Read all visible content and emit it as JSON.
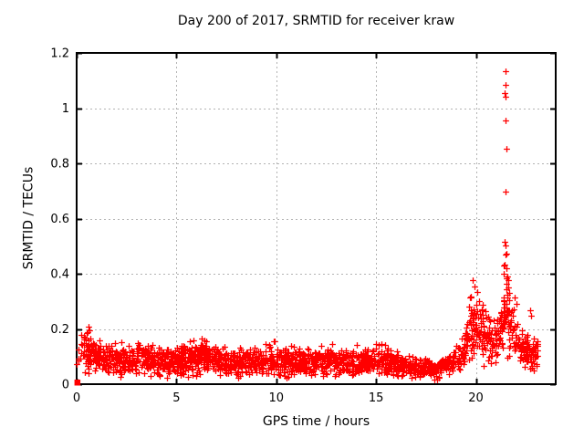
{
  "chart_data": {
    "type": "scatter",
    "title": "Day 200 of 2017, SRMTID for receiver kraw",
    "xlabel": "GPS time / hours",
    "ylabel": "SRMTID / TECUs",
    "xlim": [
      0,
      24
    ],
    "ylim": [
      0,
      1.2
    ],
    "xticks": [
      0,
      5,
      10,
      15,
      20
    ],
    "yticks": [
      0,
      0.2,
      0.4,
      0.6,
      0.8,
      1,
      1.2
    ],
    "xtick_labels": [
      "0",
      "5",
      "10",
      "15",
      "20"
    ],
    "ytick_labels": [
      "0",
      "0.2",
      "0.4",
      "0.6",
      "0.8",
      "1",
      "1.2"
    ],
    "grid": true,
    "legend": "none",
    "marker": "plus",
    "colors": {
      "points": "#ff0000",
      "grid": "#b3b3b3",
      "axis": "#000000",
      "background": "#ffffff",
      "text": "#000000"
    },
    "band_profile": [
      [
        0.0,
        0.105,
        0.05
      ],
      [
        0.45,
        0.125,
        0.075
      ],
      [
        0.8,
        0.1,
        0.055
      ],
      [
        1.5,
        0.09,
        0.05
      ],
      [
        2.5,
        0.085,
        0.05
      ],
      [
        3.5,
        0.09,
        0.055
      ],
      [
        4.5,
        0.08,
        0.045
      ],
      [
        5.5,
        0.085,
        0.05
      ],
      [
        6.3,
        0.1,
        0.06
      ],
      [
        7.0,
        0.085,
        0.05
      ],
      [
        8.0,
        0.08,
        0.045
      ],
      [
        9.0,
        0.085,
        0.05
      ],
      [
        10.2,
        0.09,
        0.055
      ],
      [
        11.0,
        0.08,
        0.045
      ],
      [
        12.0,
        0.085,
        0.05
      ],
      [
        13.0,
        0.085,
        0.05
      ],
      [
        14.0,
        0.08,
        0.045
      ],
      [
        15.2,
        0.09,
        0.055
      ],
      [
        16.0,
        0.075,
        0.04
      ],
      [
        17.0,
        0.06,
        0.033
      ],
      [
        18.0,
        0.055,
        0.03
      ],
      [
        18.7,
        0.07,
        0.035
      ],
      [
        19.3,
        0.11,
        0.05
      ],
      [
        19.55,
        0.17,
        0.09
      ],
      [
        19.8,
        0.21,
        0.1
      ],
      [
        20.1,
        0.215,
        0.1
      ],
      [
        20.5,
        0.17,
        0.08
      ],
      [
        21.0,
        0.16,
        0.07
      ],
      [
        21.3,
        0.2,
        0.1
      ],
      [
        21.45,
        0.3,
        0.17
      ],
      [
        21.6,
        0.28,
        0.16
      ],
      [
        21.75,
        0.19,
        0.09
      ],
      [
        22.0,
        0.17,
        0.08
      ],
      [
        22.3,
        0.13,
        0.06
      ],
      [
        22.6,
        0.105,
        0.05
      ],
      [
        23.1,
        0.115,
        0.055
      ]
    ],
    "density_segments": [
      [
        0.0,
        0.3,
        30
      ],
      [
        0.3,
        1.0,
        95
      ],
      [
        1.0,
        17.0,
        95
      ],
      [
        17.0,
        19.0,
        80
      ],
      [
        19.0,
        21.2,
        95
      ],
      [
        21.2,
        21.7,
        120
      ],
      [
        21.7,
        22.4,
        75
      ],
      [
        22.4,
        23.1,
        95
      ]
    ],
    "outlier_points": [
      [
        21.49,
        1.135
      ],
      [
        21.49,
        1.083
      ],
      [
        21.46,
        1.056
      ],
      [
        21.49,
        1.042
      ],
      [
        21.5,
        0.956
      ],
      [
        21.53,
        0.852
      ],
      [
        21.5,
        0.698
      ],
      [
        21.46,
        0.516
      ],
      [
        21.48,
        0.502
      ],
      [
        21.5,
        0.468
      ],
      [
        21.44,
        0.432
      ],
      [
        21.55,
        0.42
      ],
      [
        21.4,
        0.4
      ],
      [
        19.84,
        0.377
      ],
      [
        19.95,
        0.355
      ],
      [
        20.06,
        0.335
      ],
      [
        19.72,
        0.315
      ],
      [
        20.15,
        0.3
      ],
      [
        21.95,
        0.315
      ],
      [
        22.02,
        0.29
      ],
      [
        21.88,
        0.27
      ],
      [
        22.72,
        0.268
      ],
      [
        22.76,
        0.248
      ],
      [
        0.58,
        0.207
      ],
      [
        0.65,
        0.195
      ],
      [
        0.5,
        0.185
      ]
    ],
    "origin_marker": {
      "shape": "square",
      "x": 0.05,
      "y": 0.005
    },
    "render_seed": 20170200
  }
}
